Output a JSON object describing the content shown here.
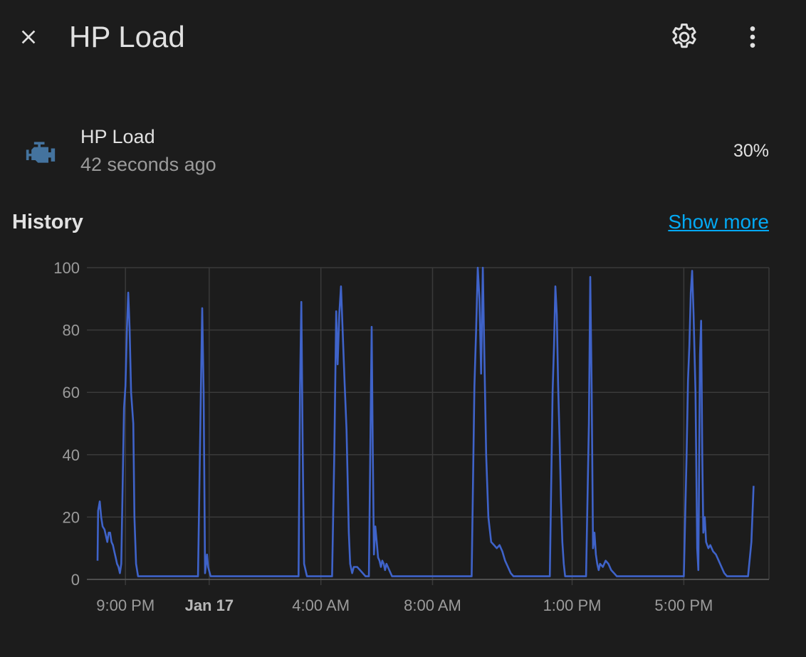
{
  "dialog": {
    "title": "HP Load",
    "close_icon": "close-icon",
    "settings_icon": "gear-icon",
    "menu_icon": "more-vert-icon"
  },
  "entity": {
    "name": "HP Load",
    "last_changed": "42 seconds ago",
    "state": "30%",
    "icon": "engine-icon",
    "icon_color": "#44739e"
  },
  "history": {
    "title": "History",
    "show_more": "Show more"
  },
  "chart_data": {
    "type": "line",
    "ylabel": "%",
    "ylim": [
      0,
      100
    ],
    "y_ticks": [
      0,
      20,
      40,
      60,
      80,
      100
    ],
    "x_ticks": [
      {
        "label": "9:00 PM",
        "t": 1.0,
        "bold": false
      },
      {
        "label": "Jan 17",
        "t": 4.0,
        "bold": true
      },
      {
        "label": "4:00 AM",
        "t": 8.0,
        "bold": false
      },
      {
        "label": "8:00 AM",
        "t": 12.0,
        "bold": false
      },
      {
        "label": "1:00 PM",
        "t": 17.0,
        "bold": false
      },
      {
        "label": "5:00 PM",
        "t": 21.0,
        "bold": false
      }
    ],
    "x_range": [
      0.0,
      24.0
    ],
    "grid": true,
    "line_color": "#3f63c9",
    "series": [
      {
        "name": "",
        "points": [
          [
            0.0,
            6
          ],
          [
            0.02,
            22
          ],
          [
            0.08,
            25
          ],
          [
            0.13,
            20
          ],
          [
            0.18,
            17
          ],
          [
            0.25,
            16
          ],
          [
            0.3,
            14
          ],
          [
            0.35,
            12
          ],
          [
            0.4,
            15
          ],
          [
            0.45,
            15
          ],
          [
            0.5,
            12
          ],
          [
            0.55,
            11
          ],
          [
            0.6,
            9
          ],
          [
            0.65,
            7
          ],
          [
            0.7,
            5
          ],
          [
            0.75,
            4
          ],
          [
            0.8,
            2
          ],
          [
            0.85,
            5
          ],
          [
            0.95,
            55
          ],
          [
            1.0,
            62
          ],
          [
            1.05,
            80
          ],
          [
            1.1,
            92
          ],
          [
            1.15,
            80
          ],
          [
            1.2,
            60
          ],
          [
            1.28,
            50
          ],
          [
            1.32,
            20
          ],
          [
            1.38,
            5
          ],
          [
            1.45,
            1
          ],
          [
            3.6,
            1
          ],
          [
            3.7,
            60
          ],
          [
            3.75,
            87
          ],
          [
            3.8,
            60
          ],
          [
            3.85,
            2
          ],
          [
            3.92,
            8
          ],
          [
            3.96,
            4
          ],
          [
            4.05,
            1
          ],
          [
            7.2,
            1
          ],
          [
            7.25,
            60
          ],
          [
            7.3,
            89
          ],
          [
            7.35,
            40
          ],
          [
            7.4,
            5
          ],
          [
            7.5,
            1
          ],
          [
            8.4,
            1
          ],
          [
            8.48,
            40
          ],
          [
            8.55,
            86
          ],
          [
            8.6,
            69
          ],
          [
            8.66,
            85
          ],
          [
            8.72,
            94
          ],
          [
            8.78,
            80
          ],
          [
            8.85,
            63
          ],
          [
            8.92,
            48
          ],
          [
            9.0,
            15
          ],
          [
            9.05,
            5
          ],
          [
            9.12,
            2
          ],
          [
            9.18,
            4
          ],
          [
            9.3,
            4
          ],
          [
            9.4,
            3
          ],
          [
            9.5,
            2
          ],
          [
            9.6,
            1
          ],
          [
            9.72,
            1
          ],
          [
            9.78,
            50
          ],
          [
            9.82,
            81
          ],
          [
            9.86,
            40
          ],
          [
            9.9,
            8
          ],
          [
            9.95,
            17
          ],
          [
            10.0,
            12
          ],
          [
            10.05,
            7
          ],
          [
            10.1,
            6
          ],
          [
            10.15,
            4
          ],
          [
            10.2,
            6
          ],
          [
            10.25,
            5
          ],
          [
            10.3,
            3
          ],
          [
            10.35,
            5
          ],
          [
            10.45,
            3
          ],
          [
            10.55,
            1
          ],
          [
            13.4,
            1
          ],
          [
            13.5,
            62
          ],
          [
            13.56,
            80
          ],
          [
            13.62,
            100
          ],
          [
            13.68,
            90
          ],
          [
            13.74,
            66
          ],
          [
            13.8,
            100
          ],
          [
            13.86,
            70
          ],
          [
            13.92,
            40
          ],
          [
            14.0,
            20
          ],
          [
            14.1,
            12
          ],
          [
            14.2,
            11
          ],
          [
            14.3,
            10
          ],
          [
            14.4,
            11
          ],
          [
            14.5,
            9
          ],
          [
            14.6,
            6
          ],
          [
            14.7,
            4
          ],
          [
            14.8,
            2
          ],
          [
            14.9,
            1
          ],
          [
            16.2,
            1
          ],
          [
            16.3,
            60
          ],
          [
            16.35,
            75
          ],
          [
            16.4,
            94
          ],
          [
            16.45,
            85
          ],
          [
            16.5,
            62
          ],
          [
            16.55,
            45
          ],
          [
            16.6,
            25
          ],
          [
            16.65,
            12
          ],
          [
            16.7,
            5
          ],
          [
            16.75,
            1
          ],
          [
            17.5,
            1
          ],
          [
            17.6,
            50
          ],
          [
            17.65,
            97
          ],
          [
            17.7,
            60
          ],
          [
            17.75,
            10
          ],
          [
            17.8,
            15
          ],
          [
            17.85,
            8
          ],
          [
            17.9,
            5
          ],
          [
            17.95,
            3
          ],
          [
            18.0,
            5
          ],
          [
            18.1,
            4
          ],
          [
            18.2,
            6
          ],
          [
            18.3,
            5
          ],
          [
            18.4,
            3
          ],
          [
            18.5,
            2
          ],
          [
            18.6,
            1
          ],
          [
            21.0,
            1
          ],
          [
            21.1,
            40
          ],
          [
            21.15,
            64
          ],
          [
            21.2,
            75
          ],
          [
            21.25,
            92
          ],
          [
            21.3,
            99
          ],
          [
            21.35,
            85
          ],
          [
            21.42,
            60
          ],
          [
            21.48,
            10
          ],
          [
            21.52,
            3
          ],
          [
            21.58,
            72
          ],
          [
            21.62,
            83
          ],
          [
            21.66,
            40
          ],
          [
            21.7,
            15
          ],
          [
            21.75,
            20
          ],
          [
            21.8,
            12
          ],
          [
            21.88,
            10
          ],
          [
            21.95,
            11
          ],
          [
            22.05,
            9
          ],
          [
            22.15,
            8
          ],
          [
            22.25,
            6
          ],
          [
            22.35,
            4
          ],
          [
            22.45,
            2
          ],
          [
            22.55,
            1
          ],
          [
            23.3,
            1
          ],
          [
            23.42,
            12
          ],
          [
            23.5,
            30
          ]
        ]
      }
    ]
  }
}
